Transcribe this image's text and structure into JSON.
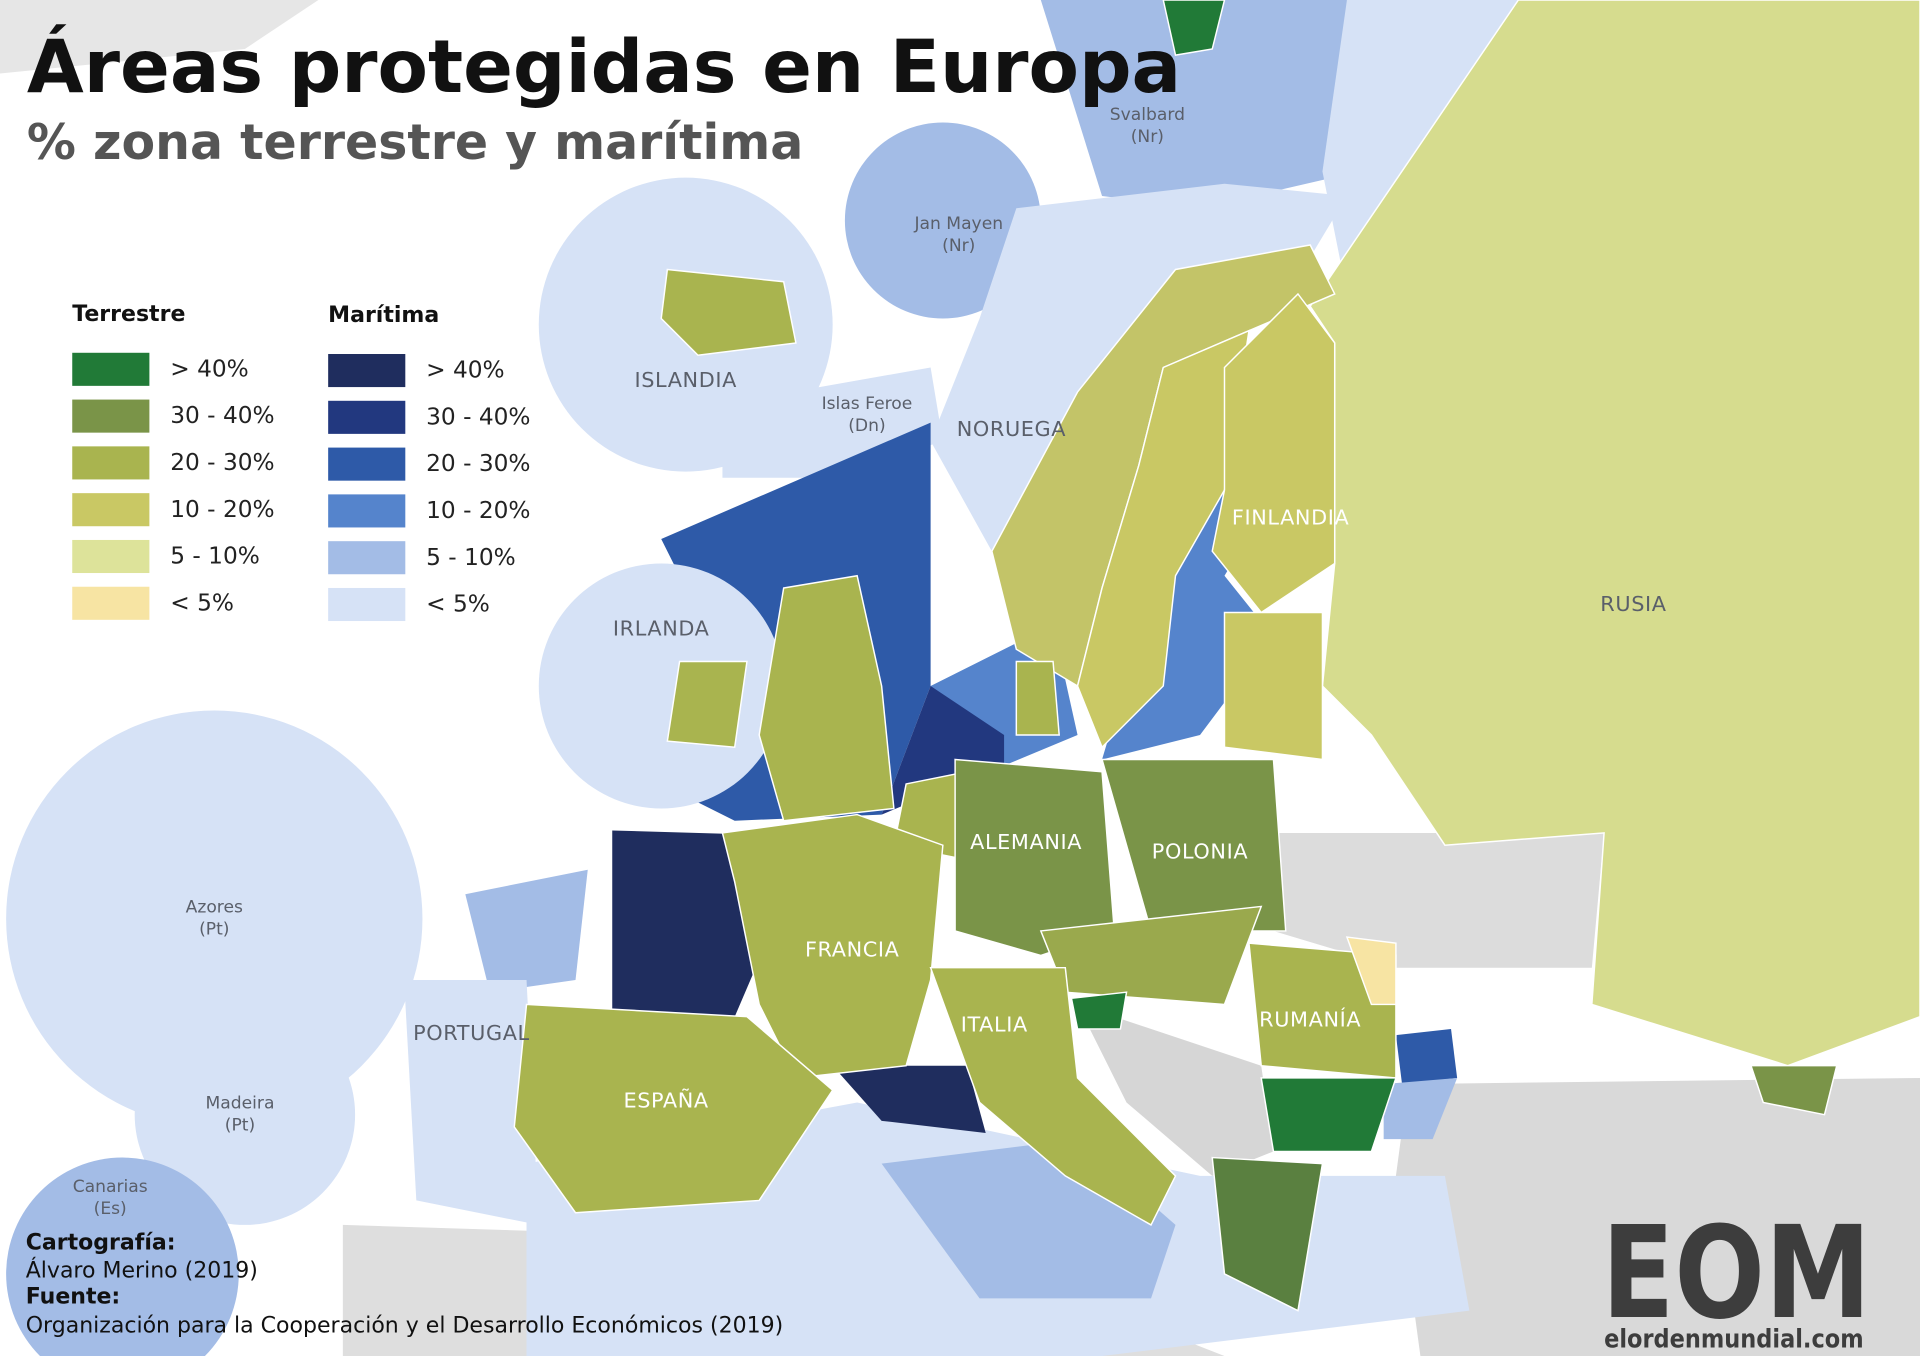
{
  "title": "Áreas protegidas en Europa",
  "subtitle": "% zona terrestre y marítima",
  "legend": {
    "terrestrial": {
      "title": "Terrestre",
      "items": [
        {
          "label": "> 40%",
          "color": "#217a37"
        },
        {
          "label": "30 - 40%",
          "color": "#7a9448"
        },
        {
          "label": "20 - 30%",
          "color": "#a9b44f"
        },
        {
          "label": "10 - 20%",
          "color": "#c9c864"
        },
        {
          "label": "5 - 10%",
          "color": "#dde39a"
        },
        {
          "label": "< 5%",
          "color": "#f7e4a3"
        }
      ]
    },
    "maritime": {
      "title": "Marítima",
      "items": [
        {
          "label": "> 40%",
          "color": "#1f2d5e"
        },
        {
          "label": "30 - 40%",
          "color": "#22387f"
        },
        {
          "label": "20 - 30%",
          "color": "#2e5aa8"
        },
        {
          "label": "10 - 20%",
          "color": "#5584cc"
        },
        {
          "label": "5 - 10%",
          "color": "#a3bce6"
        },
        {
          "label": "< 5%",
          "color": "#d6e2f6"
        }
      ]
    }
  },
  "labels": {
    "svalbard": {
      "name": "Svalbard",
      "note": "(Nr)"
    },
    "jan_mayen": {
      "name": "Jan Mayen",
      "note": "(Nr)"
    },
    "islandia": {
      "name": "ISLANDIA"
    },
    "islas_feroe": {
      "name": "Islas Feroe",
      "note": "(Dn)"
    },
    "noruega": {
      "name": "NORUEGA"
    },
    "finlandia": {
      "name": "FINLANDIA"
    },
    "irlanda": {
      "name": "IRLANDA"
    },
    "rusia": {
      "name": "RUSIA"
    },
    "alemania": {
      "name": "ALEMANIA"
    },
    "polonia": {
      "name": "POLONIA"
    },
    "francia": {
      "name": "FRANCIA"
    },
    "azores": {
      "name": "Azores",
      "note": "(Pt)"
    },
    "rumania": {
      "name": "RUMANÍA"
    },
    "italia": {
      "name": "ITALIA"
    },
    "portugal": {
      "name": "PORTUGAL"
    },
    "espana": {
      "name": "ESPAÑA"
    },
    "madeira": {
      "name": "Madeira",
      "note": "(Pt)"
    },
    "canarias": {
      "name": "Canarias",
      "note": "(Es)"
    }
  },
  "credits": {
    "cartography_heading": "Cartografía:",
    "cartography": "Álvaro Merino (2019)",
    "source_heading": "Fuente:",
    "source": "Organización para la Cooperación y el Desarrollo Económicos (2019)"
  },
  "logo": {
    "letters": "EOM",
    "url": "elordenmundial.com"
  }
}
